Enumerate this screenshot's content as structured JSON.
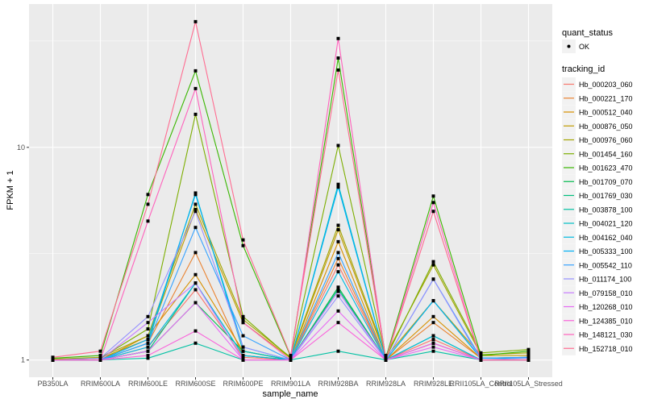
{
  "chart_data": {
    "type": "line",
    "xlabel": "sample_name",
    "ylabel": "FPKM + 1",
    "y_scale": "log10",
    "ylim": [
      0.83,
      47.2
    ],
    "y_ticks": [
      {
        "value": 1,
        "label": "1"
      },
      {
        "value": 10,
        "label": "10"
      }
    ],
    "grid": true,
    "categories": [
      "PB350LA",
      "RRIM600LA",
      "RRIM600LE",
      "RRIM600SE",
      "RRIM600PE",
      "RRIM901LA",
      "RRIM928BA",
      "RRIM928LA",
      "RRIM928LE",
      "RRII105LA_Control",
      "RRII105LA_Stressed"
    ],
    "legend_position": "right",
    "legends": [
      {
        "title": "quant_status",
        "entries": [
          {
            "label": "OK",
            "shape": "point"
          }
        ]
      },
      {
        "title": "tracking_id"
      }
    ],
    "series": [
      {
        "name": "Hb_000203_060",
        "color": "#F8766D",
        "values": [
          1.0,
          1.0,
          1.15,
          2.14,
          1.03,
          1.0,
          2.8,
          1.0,
          1.25,
          1.0,
          1.0
        ]
      },
      {
        "name": "Hb_000221_170",
        "color": "#EA8331",
        "values": [
          1.0,
          1.0,
          1.2,
          3.2,
          1.05,
          1.0,
          3.0,
          1.0,
          1.5,
          1.02,
          1.02
        ]
      },
      {
        "name": "Hb_000512_040",
        "color": "#D89000",
        "values": [
          1.0,
          1.0,
          1.3,
          2.52,
          1.1,
          1.0,
          3.6,
          1.0,
          1.6,
          1.02,
          1.03
        ]
      },
      {
        "name": "Hb_000876_050",
        "color": "#C09B00",
        "values": [
          1.01,
          1.02,
          1.25,
          5.1,
          1.5,
          1.02,
          4.1,
          1.03,
          1.9,
          1.05,
          1.05
        ]
      },
      {
        "name": "Hb_000976_060",
        "color": "#A3A500",
        "values": [
          1.01,
          1.03,
          1.3,
          5.4,
          1.55,
          1.03,
          4.3,
          1.05,
          2.8,
          1.06,
          1.08
        ]
      },
      {
        "name": "Hb_001454_160",
        "color": "#7CAE00",
        "values": [
          1.0,
          1.02,
          1.4,
          14.3,
          1.6,
          1.02,
          10.2,
          1.02,
          2.9,
          1.08,
          1.12
        ]
      },
      {
        "name": "Hb_001623_470",
        "color": "#39B600",
        "values": [
          1.02,
          1.05,
          6.0,
          22.9,
          3.45,
          1.04,
          26.3,
          1.02,
          5.9,
          1.05,
          1.1
        ]
      },
      {
        "name": "Hb_001709_070",
        "color": "#00BB4E",
        "values": [
          1.0,
          1.0,
          1.1,
          1.86,
          1.1,
          1.0,
          2.2,
          1.0,
          1.3,
          1.0,
          1.0
        ]
      },
      {
        "name": "Hb_001769_030",
        "color": "#00BF7D",
        "values": [
          1.0,
          1.0,
          1.1,
          2.3,
          1.05,
          1.0,
          2.15,
          1.0,
          1.2,
          1.0,
          1.0
        ]
      },
      {
        "name": "Hb_003878_100",
        "color": "#00C1A3",
        "values": [
          1.0,
          1.0,
          1.02,
          1.2,
          1.0,
          1.0,
          1.1,
          1.0,
          1.1,
          1.0,
          1.0
        ]
      },
      {
        "name": "Hb_004021_120",
        "color": "#00BFC4",
        "values": [
          1.0,
          1.0,
          1.2,
          6.1,
          1.1,
          1.0,
          6.7,
          1.0,
          1.9,
          1.02,
          1.02
        ]
      },
      {
        "name": "Hb_004162_040",
        "color": "#00BAE0",
        "values": [
          1.0,
          1.0,
          1.15,
          2.3,
          1.05,
          1.0,
          2.6,
          1.0,
          1.3,
          1.0,
          1.0
        ]
      },
      {
        "name": "Hb_005333_100",
        "color": "#00B0F6",
        "values": [
          1.0,
          1.0,
          1.25,
          6.0,
          1.15,
          1.0,
          6.5,
          1.0,
          1.9,
          1.02,
          1.03
        ]
      },
      {
        "name": "Hb_005542_110",
        "color": "#35A2FF",
        "values": [
          1.0,
          1.0,
          1.2,
          4.2,
          1.3,
          1.0,
          3.2,
          1.0,
          2.4,
          1.02,
          1.03
        ]
      },
      {
        "name": "Hb_011174_100",
        "color": "#9590FF",
        "values": [
          1.0,
          1.02,
          1.6,
          5.0,
          1.15,
          1.0,
          2.0,
          1.0,
          2.4,
          1.0,
          1.02
        ]
      },
      {
        "name": "Hb_079158_010",
        "color": "#C77CFF",
        "values": [
          1.0,
          1.0,
          1.5,
          2.3,
          1.0,
          1.0,
          2.1,
          1.0,
          1.2,
          1.0,
          1.0
        ]
      },
      {
        "name": "Hb_120268_010",
        "color": "#E76BF3",
        "values": [
          1.0,
          1.0,
          1.1,
          1.86,
          1.0,
          1.0,
          1.7,
          1.0,
          1.15,
          1.0,
          1.0
        ]
      },
      {
        "name": "Hb_124385_010",
        "color": "#FA62DB",
        "values": [
          1.0,
          1.0,
          1.05,
          1.37,
          1.0,
          1.0,
          1.5,
          1.0,
          1.2,
          1.0,
          1.0
        ]
      },
      {
        "name": "Hb_148121_030",
        "color": "#FF62BC",
        "values": [
          1.0,
          1.0,
          4.5,
          18.9,
          1.5,
          1.0,
          32.5,
          1.0,
          5.5,
          1.0,
          1.0
        ]
      },
      {
        "name": "Hb_152718_010",
        "color": "#FF6C91",
        "values": [
          1.03,
          1.1,
          5.4,
          39.0,
          3.67,
          1.05,
          23.1,
          1.0,
          5.0,
          1.0,
          1.0
        ]
      }
    ]
  }
}
